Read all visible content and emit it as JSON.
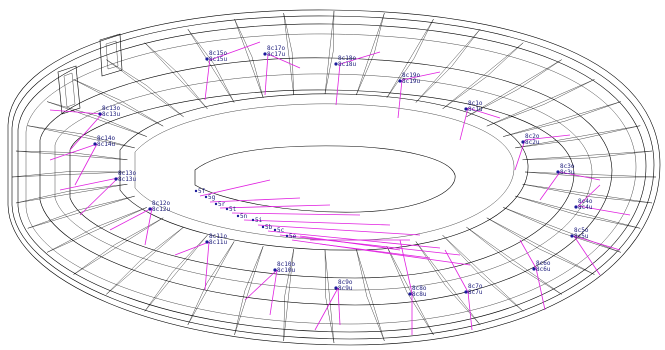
{
  "colors": {
    "background": "#ffffff",
    "wireframe": "#000000",
    "vectors": "#e020e0",
    "labels": "#1a1a7a"
  },
  "sensor_labels": [
    {
      "id": "s01",
      "top": "8c15o",
      "bottom": "8c15u"
    },
    {
      "id": "s02",
      "top": "8c17o",
      "bottom": "8c17u"
    },
    {
      "id": "s03",
      "top": "8c18o",
      "bottom": "8c18u"
    },
    {
      "id": "s04",
      "top": "8c19o",
      "bottom": "8c19u"
    },
    {
      "id": "s05",
      "top": "8c1o",
      "bottom": "8c1u"
    },
    {
      "id": "s06",
      "top": "8c2o",
      "bottom": "8c2u"
    },
    {
      "id": "s07",
      "top": "8c13o",
      "bottom": "8c13u"
    },
    {
      "id": "s08",
      "top": "8c14o",
      "bottom": "8c14u"
    },
    {
      "id": "s09",
      "top": "8c13o",
      "bottom": "8c13u"
    },
    {
      "id": "s10",
      "top": "8c12o",
      "bottom": "8c12u"
    },
    {
      "id": "s11",
      "top": "8c3o",
      "bottom": "8c3u"
    },
    {
      "id": "s12",
      "top": "8c4o",
      "bottom": "8c4u"
    },
    {
      "id": "s13",
      "top": "8c11o",
      "bottom": "8c11u"
    },
    {
      "id": "s14",
      "top": "8c10o",
      "bottom": "8c10u"
    },
    {
      "id": "s15",
      "top": "8c9o",
      "bottom": "8c9u"
    },
    {
      "id": "s16",
      "top": "8c8o",
      "bottom": "8c8u"
    },
    {
      "id": "s17",
      "top": "8c7o",
      "bottom": "8c7u"
    },
    {
      "id": "s18",
      "top": "8c6o",
      "bottom": "8c6u"
    },
    {
      "id": "s19",
      "top": "8c5o",
      "bottom": "8c5u"
    }
  ],
  "inner_labels": [
    {
      "id": "i01",
      "text": "5f"
    },
    {
      "id": "i02",
      "text": "5g"
    },
    {
      "id": "i03",
      "text": "5r"
    },
    {
      "id": "i04",
      "text": "5t"
    },
    {
      "id": "i05",
      "text": "5n"
    },
    {
      "id": "i06",
      "text": "5i"
    },
    {
      "id": "i07",
      "text": "5b"
    },
    {
      "id": "i08",
      "text": "5c"
    },
    {
      "id": "i09",
      "text": "5e"
    }
  ]
}
